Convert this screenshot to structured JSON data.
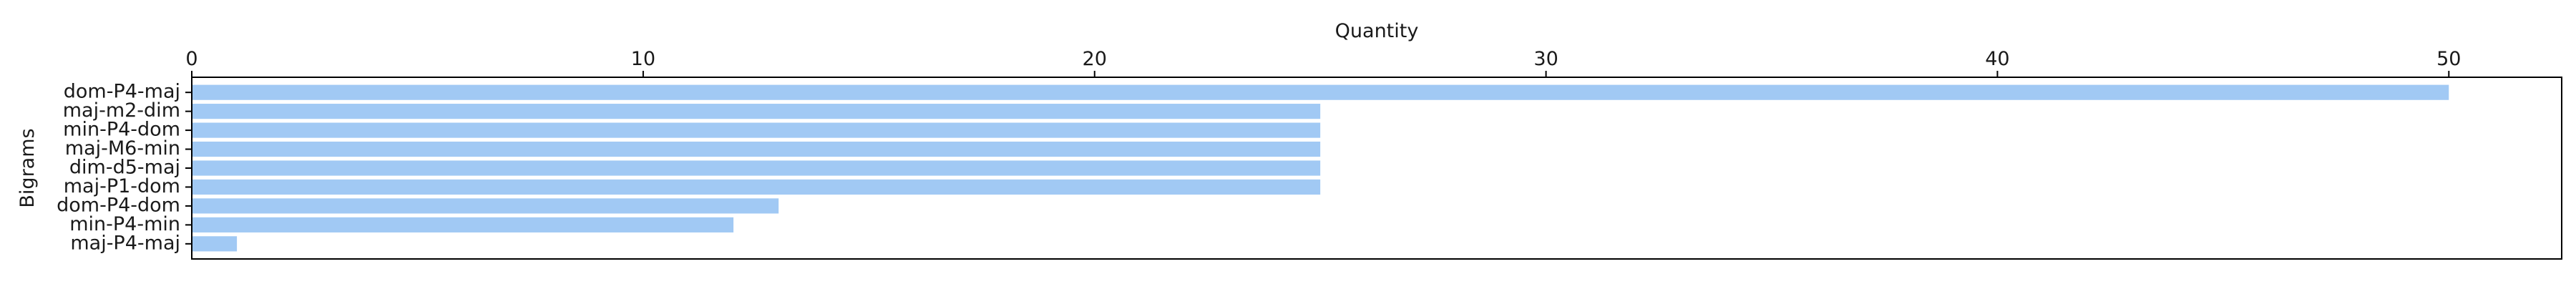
{
  "chart_data": {
    "type": "bar",
    "orientation": "horizontal",
    "title": "",
    "xlabel": "Quantity",
    "ylabel": "Bigrams",
    "xlim": [
      0,
      52.5
    ],
    "x_axis_position": "top",
    "xticks": [
      "0",
      "10",
      "20",
      "30",
      "40",
      "50"
    ],
    "grid": false,
    "legend": "none",
    "bar_color": "#a1c9f4",
    "categories": [
      "dom-P4-maj",
      "maj-m2-dim",
      "min-P4-dom",
      "maj-M6-min",
      "dim-d5-maj",
      "maj-P1-dom",
      "dom-P4-dom",
      "min-P4-min",
      "maj-P4-maj"
    ],
    "values": [
      50,
      25,
      25,
      25,
      25,
      25,
      13,
      12,
      1
    ]
  }
}
